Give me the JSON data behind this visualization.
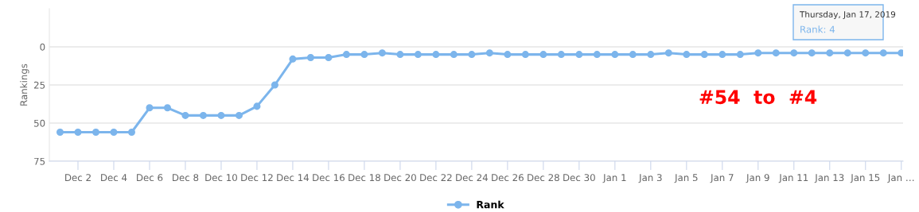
{
  "chart_data": {
    "type": "line",
    "ylabel": "Rankings",
    "categories": [
      null,
      "Dec 2",
      null,
      "Dec 4",
      null,
      "Dec 6",
      null,
      "Dec 8",
      null,
      "Dec 10",
      null,
      "Dec 12",
      null,
      "Dec 14",
      null,
      "Dec 16",
      null,
      "Dec 18",
      null,
      "Dec 20",
      null,
      "Dec 22",
      null,
      "Dec 24",
      null,
      "Dec 26",
      null,
      "Dec 28",
      null,
      "Dec 30",
      null,
      "Jan 1",
      null,
      "Jan 3",
      null,
      "Jan 5",
      null,
      "Jan 7",
      null,
      "Jan 9",
      null,
      "Jan 11",
      null,
      "Jan 13",
      null,
      "Jan 15",
      null,
      "Jan …"
    ],
    "series": [
      {
        "name": "Rank",
        "color": "#7cb5ec",
        "values": [
          56,
          56,
          56,
          56,
          56,
          40,
          40,
          45,
          45,
          45,
          45,
          39,
          25,
          8,
          7,
          7,
          5,
          5,
          4,
          5,
          5,
          5,
          5,
          5,
          4,
          5,
          5,
          5,
          5,
          5,
          5,
          5,
          5,
          5,
          4,
          5,
          5,
          5,
          5,
          4,
          4,
          4,
          4,
          4,
          4,
          4,
          4,
          4
        ]
      }
    ],
    "ylim": [
      75,
      -25
    ],
    "yticks": [
      0,
      25,
      50,
      75
    ],
    "grid": "y",
    "legend": "bottom",
    "marker": "circle",
    "line_style": "solid",
    "annotations": [
      "#54  to  #4",
      "Thursday, Jan 17, 2019",
      "Rank: 4"
    ]
  }
}
